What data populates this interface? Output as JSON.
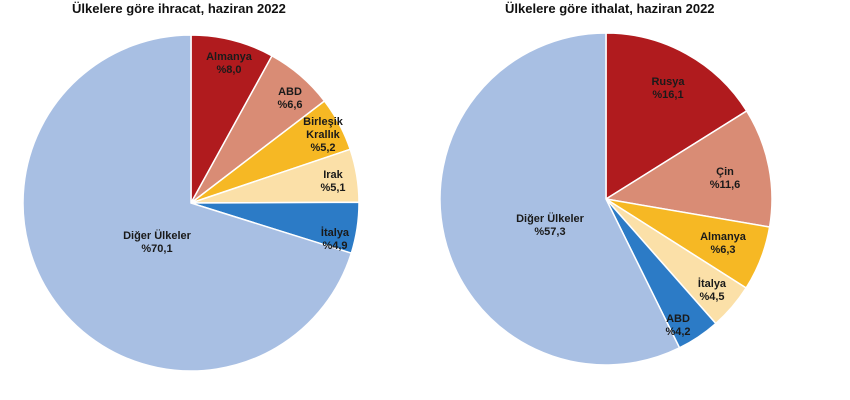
{
  "chart_data": [
    {
      "type": "pie",
      "title": "Ülkelere göre ihracat, haziran 2022",
      "start": "top",
      "direction": "clockwise",
      "slices": [
        {
          "label": [
            "Almanya"
          ],
          "value_label": "%8,0",
          "value": 8.0,
          "color": "#B01B1E"
        },
        {
          "label": [
            "ABD"
          ],
          "value_label": "%6,6",
          "value": 6.6,
          "color": "#D98C75"
        },
        {
          "label": [
            "Birleşik",
            "Krallık"
          ],
          "value_label": "%5,2",
          "value": 5.2,
          "color": "#F6B824"
        },
        {
          "label": [
            "Irak"
          ],
          "value_label": "%5,1",
          "value": 5.1,
          "color": "#FBE0A8"
        },
        {
          "label": [
            "İtalya"
          ],
          "value_label": "%4,9",
          "value": 4.9,
          "color": "#2C7BC6"
        },
        {
          "label": [
            "Diğer Ülkeler"
          ],
          "value_label": "%70,1",
          "value": 70.1,
          "color": "#A8BFE3"
        }
      ]
    },
    {
      "type": "pie",
      "title": "Ülkelere göre ithalat, haziran 2022",
      "start": "top",
      "direction": "clockwise",
      "slices": [
        {
          "label": [
            "Rusya"
          ],
          "value_label": "%16,1",
          "value": 16.1,
          "color": "#B01B1E"
        },
        {
          "label": [
            "Çin"
          ],
          "value_label": "%11,6",
          "value": 11.6,
          "color": "#D98C75"
        },
        {
          "label": [
            "Almanya"
          ],
          "value_label": "%6,3",
          "value": 6.3,
          "color": "#F6B824"
        },
        {
          "label": [
            "İtalya"
          ],
          "value_label": "%4,5",
          "value": 4.5,
          "color": "#FBE0A8"
        },
        {
          "label": [
            "ABD"
          ],
          "value_label": "%4,2",
          "value": 4.2,
          "color": "#2C7BC6"
        },
        {
          "label": [
            "Diğer Ülkeler"
          ],
          "value_label": "%57,3",
          "value": 57.3,
          "color": "#A8BFE3"
        }
      ]
    }
  ]
}
